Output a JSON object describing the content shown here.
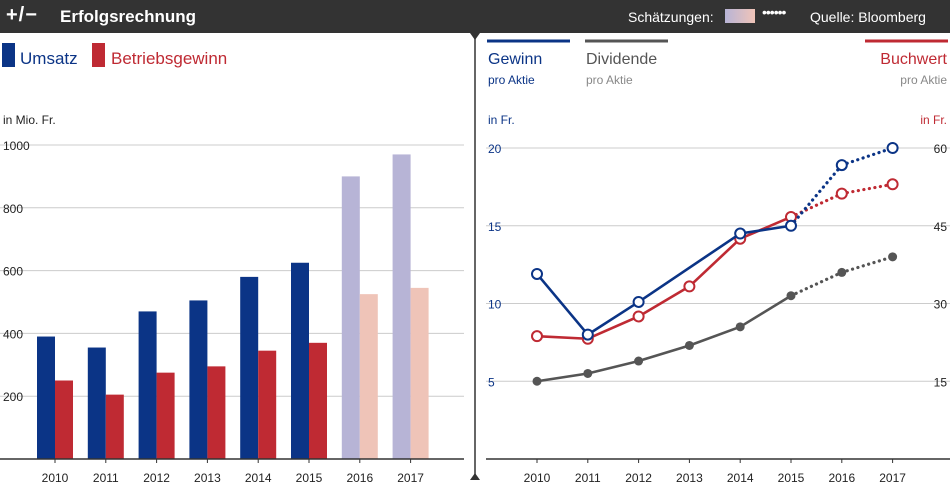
{
  "header": {
    "plusminus": "+/−",
    "title": "Erfolgsrechnung",
    "estimates_label": "Schätzungen:",
    "dots": "••••••",
    "source": "Quelle: Bloomberg"
  },
  "colors": {
    "navy": "#0b3486",
    "red": "#bf2a33",
    "gray": "#555555",
    "est_navy": "#b7b4d6",
    "est_red": "#efc4b8",
    "gridline": "#cccccc"
  },
  "chart_data": [
    {
      "type": "bar",
      "title": "Erfolgsrechnung",
      "ylabel": "in Mio. Fr.",
      "ylim": [
        0,
        1000
      ],
      "yticks": [
        "200",
        "400",
        "600",
        "800",
        "1000"
      ],
      "ytick_values": [
        200,
        400,
        600,
        800,
        1000
      ],
      "categories": [
        "2010",
        "2011",
        "2012",
        "2013",
        "2014",
        "2015",
        "2016",
        "2017"
      ],
      "estimate_from_index": 6,
      "legend": [
        "Umsatz",
        "Betriebsgewinn"
      ],
      "series": [
        {
          "name": "Umsatz",
          "values": [
            390,
            355,
            470,
            505,
            580,
            625,
            900,
            970
          ]
        },
        {
          "name": "Betriebsgewinn",
          "values": [
            250,
            205,
            275,
            295,
            345,
            370,
            525,
            545
          ]
        }
      ]
    },
    {
      "type": "line",
      "left_axis_label": "in Fr.",
      "right_axis_label": "in Fr.",
      "ylim_left": [
        0,
        20
      ],
      "left_ticks": [
        "5",
        "10",
        "15",
        "20"
      ],
      "left_tick_values": [
        5,
        10,
        15,
        20
      ],
      "ylim_right": [
        0,
        60
      ],
      "right_ticks": [
        "15",
        "30",
        "45",
        "60"
      ],
      "right_tick_values": [
        15,
        30,
        45,
        60
      ],
      "categories": [
        "2010",
        "2011",
        "2012",
        "2013",
        "2014",
        "2015",
        "2016",
        "2017"
      ],
      "estimate_from_index": 5,
      "legend": [
        {
          "name": "Gewinn",
          "sub": "pro Aktie"
        },
        {
          "name": "Dividende",
          "sub": "pro Aktie"
        },
        {
          "name": "Buchwert",
          "sub": "pro Aktie"
        }
      ],
      "series": [
        {
          "name": "Gewinn pro Aktie",
          "axis": "left",
          "values": [
            11.9,
            8.0,
            10.1,
            null,
            14.5,
            15.0,
            18.9,
            20.0
          ]
        },
        {
          "name": "Dividende pro Aktie",
          "axis": "left",
          "values": [
            5.0,
            5.5,
            6.3,
            7.3,
            8.5,
            10.5,
            12.0,
            13.0
          ]
        },
        {
          "name": "Buchwert pro Aktie",
          "axis": "right",
          "values": [
            23.7,
            23.2,
            27.5,
            33.3,
            42.5,
            46.7,
            51.2,
            53.0
          ]
        }
      ]
    }
  ]
}
